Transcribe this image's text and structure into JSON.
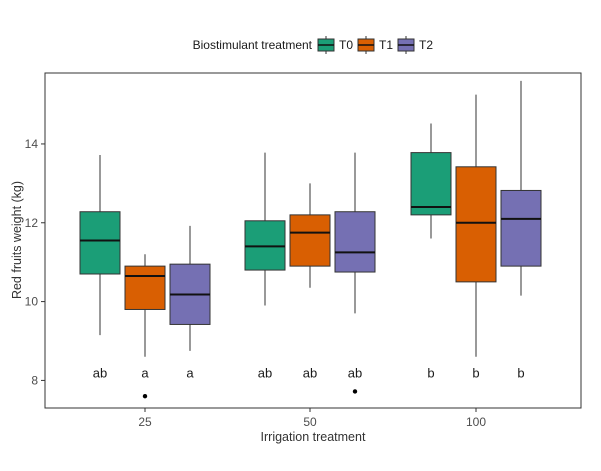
{
  "colors": {
    "T0": "#1b9e77",
    "T1": "#d95f02",
    "T2": "#7570b3",
    "outline": "#333333",
    "panel_border": "#333333"
  },
  "chart_data": {
    "type": "boxplot",
    "xlabel": "Irrigation treatment",
    "ylabel": "Red fruits weight (kg)",
    "categories": [
      "25",
      "50",
      "100"
    ],
    "ylim": [
      7.3,
      15.8
    ],
    "yticks": [
      8,
      10,
      12,
      14
    ],
    "grid": false,
    "legend": {
      "title": "Biostimulant treatment",
      "position": "top",
      "entries": [
        "T0",
        "T1",
        "T2"
      ]
    },
    "series": [
      {
        "name": "T0",
        "boxes": [
          {
            "category": "25",
            "whisker_low": 9.15,
            "q1": 10.7,
            "median": 11.55,
            "q3": 12.28,
            "whisker_high": 13.72,
            "outliers": [],
            "letter": "ab"
          },
          {
            "category": "50",
            "whisker_low": 9.9,
            "q1": 10.8,
            "median": 11.4,
            "q3": 12.05,
            "whisker_high": 13.78,
            "outliers": [],
            "letter": "ab"
          },
          {
            "category": "100",
            "whisker_low": 11.6,
            "q1": 12.2,
            "median": 12.4,
            "q3": 13.78,
            "whisker_high": 14.52,
            "outliers": [],
            "letter": "b"
          }
        ]
      },
      {
        "name": "T1",
        "boxes": [
          {
            "category": "25",
            "whisker_low": 8.6,
            "q1": 9.8,
            "median": 10.65,
            "q3": 10.9,
            "whisker_high": 11.2,
            "outliers": [
              7.6
            ],
            "letter": "a"
          },
          {
            "category": "50",
            "whisker_low": 10.35,
            "q1": 10.9,
            "median": 11.75,
            "q3": 12.2,
            "whisker_high": 13.0,
            "outliers": [],
            "letter": "ab"
          },
          {
            "category": "100",
            "whisker_low": 8.6,
            "q1": 10.5,
            "median": 12.0,
            "q3": 13.42,
            "whisker_high": 15.25,
            "outliers": [],
            "letter": "b"
          }
        ]
      },
      {
        "name": "T2",
        "boxes": [
          {
            "category": "25",
            "whisker_low": 8.75,
            "q1": 9.42,
            "median": 10.18,
            "q3": 10.95,
            "whisker_high": 11.92,
            "outliers": [],
            "letter": "a"
          },
          {
            "category": "50",
            "whisker_low": 9.7,
            "q1": 10.75,
            "median": 11.25,
            "q3": 12.28,
            "whisker_high": 13.78,
            "outliers": [
              7.72
            ],
            "letter": "ab"
          },
          {
            "category": "100",
            "whisker_low": 10.15,
            "q1": 10.9,
            "median": 12.1,
            "q3": 12.82,
            "whisker_high": 15.6,
            "outliers": [],
            "letter": "b"
          }
        ]
      }
    ],
    "letters_y": 8.2
  }
}
